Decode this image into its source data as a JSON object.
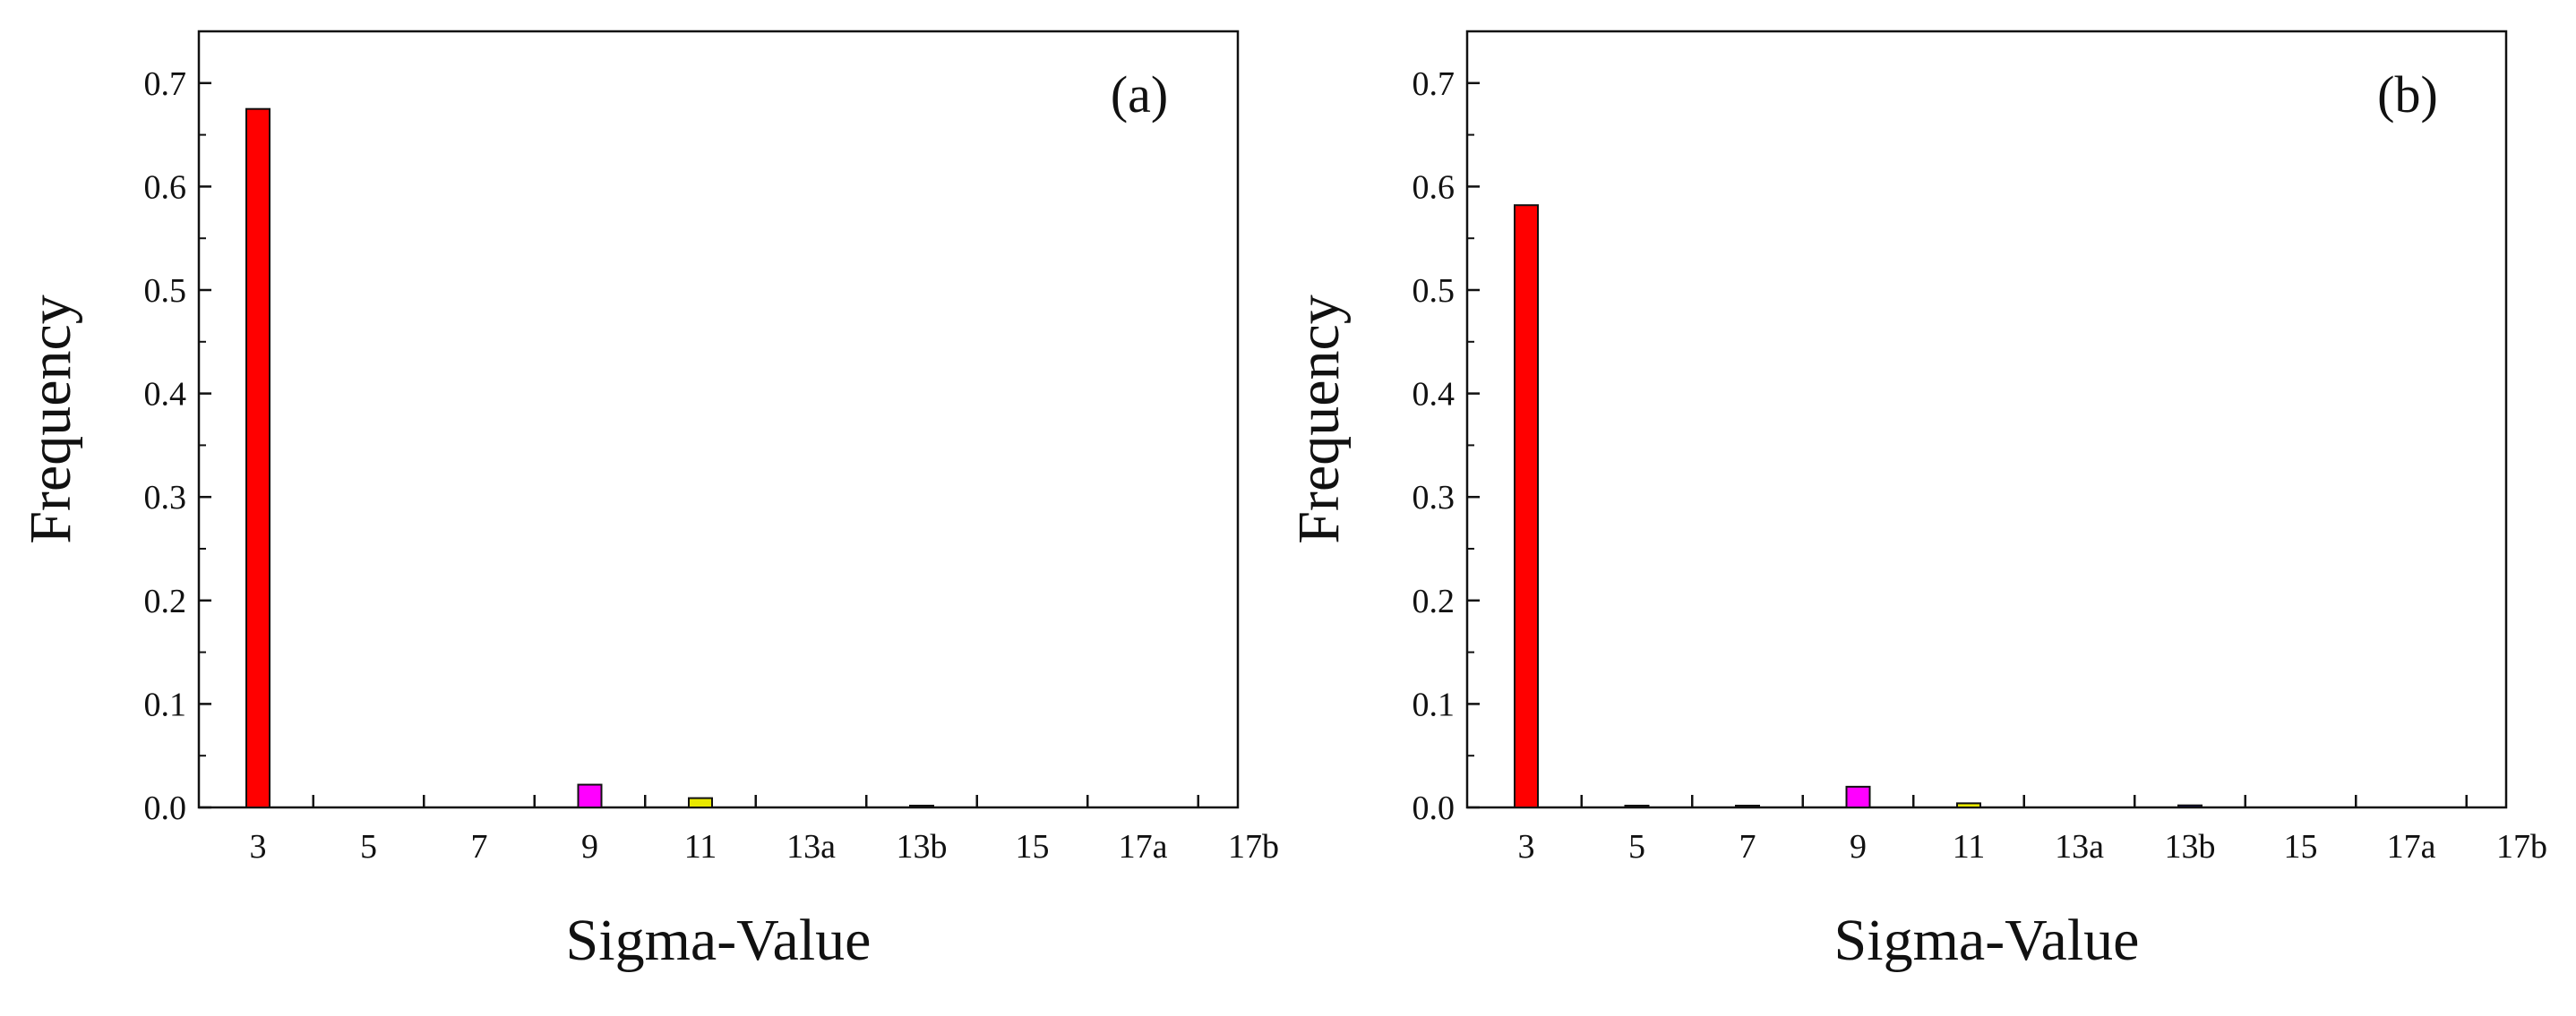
{
  "chart_data": [
    {
      "type": "bar",
      "panel_label": "(a)",
      "xlabel": "Sigma-Value",
      "ylabel": "Frequency",
      "categories": [
        "3",
        "5",
        "7",
        "9",
        "11",
        "13a",
        "13b",
        "15",
        "17a",
        "17b"
      ],
      "values": [
        0.675,
        0,
        0,
        0.022,
        0.009,
        0,
        0.001,
        0,
        0,
        0
      ],
      "bar_colors": [
        "#ff0000",
        "#2d2d8c",
        "#1fa01f",
        "#ff00ff",
        "#e8e800",
        "#8b0000",
        "#000080",
        "#808000",
        "#800080",
        "#008080"
      ],
      "ylim": [
        0,
        0.75
      ],
      "yticks": [
        "0.0",
        "0.1",
        "0.2",
        "0.3",
        "0.4",
        "0.5",
        "0.6",
        "0.7"
      ],
      "grid": false,
      "legend": "none"
    },
    {
      "type": "bar",
      "panel_label": "(b)",
      "xlabel": "Sigma-Value",
      "ylabel": "Frequency",
      "categories": [
        "3",
        "5",
        "7",
        "9",
        "11",
        "13a",
        "13b",
        "15",
        "17a",
        "17b"
      ],
      "values": [
        0.582,
        0.001,
        0.001,
        0.02,
        0.004,
        0,
        0.002,
        0,
        0,
        0
      ],
      "bar_colors": [
        "#ff0000",
        "#2d2d8c",
        "#1fa01f",
        "#ff00ff",
        "#e8e800",
        "#8b0000",
        "#000080",
        "#808000",
        "#800080",
        "#008080"
      ],
      "ylim": [
        0,
        0.75
      ],
      "yticks": [
        "0.0",
        "0.1",
        "0.2",
        "0.3",
        "0.4",
        "0.5",
        "0.6",
        "0.7"
      ],
      "grid": false,
      "legend": "none"
    }
  ]
}
